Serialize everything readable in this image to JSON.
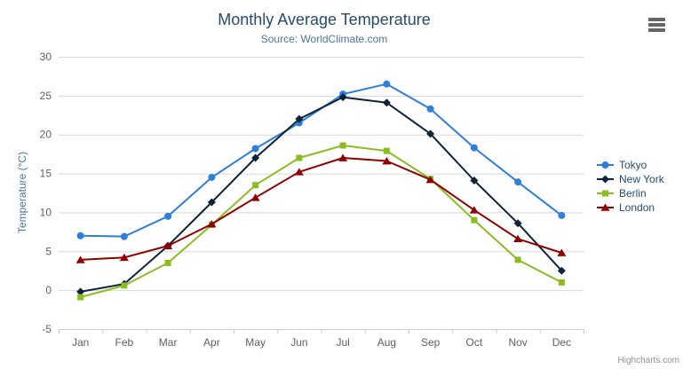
{
  "title": "Monthly Average Temperature",
  "subtitle": "Source: WorldClimate.com",
  "credits": "Highcharts.com",
  "colors": {
    "title_text": "#274b6d",
    "subtitle_text": "#4d759e",
    "axis_label": "#606060",
    "grid_line": "#d8d8d8",
    "axis_line": "#c0d0e0",
    "legend_text": "#274b6d",
    "credits_text": "#909090",
    "menu_icon": "#666666"
  },
  "chart_data": {
    "type": "line",
    "title": "Monthly Average Temperature",
    "subtitle": "Source: WorldClimate.com",
    "xlabel": "",
    "ylabel": "Temperature (°C)",
    "ylim": [
      -5,
      30
    ],
    "ytick_interval": 5,
    "grid": true,
    "legend_position": "right",
    "categories": [
      "Jan",
      "Feb",
      "Mar",
      "Apr",
      "May",
      "Jun",
      "Jul",
      "Aug",
      "Sep",
      "Oct",
      "Nov",
      "Dec"
    ],
    "series": [
      {
        "name": "Tokyo",
        "color": "#2f7ed8",
        "marker": "circle",
        "values": [
          7.0,
          6.9,
          9.5,
          14.5,
          18.2,
          21.5,
          25.2,
          26.5,
          23.3,
          18.3,
          13.9,
          9.6
        ]
      },
      {
        "name": "New York",
        "color": "#0d233a",
        "marker": "diamond",
        "values": [
          -0.2,
          0.8,
          5.7,
          11.3,
          17.0,
          22.0,
          24.8,
          24.1,
          20.1,
          14.1,
          8.6,
          2.5
        ]
      },
      {
        "name": "Berlin",
        "color": "#8bbc21",
        "marker": "square",
        "values": [
          -0.9,
          0.6,
          3.5,
          8.4,
          13.5,
          17.0,
          18.6,
          17.9,
          14.3,
          9.0,
          3.9,
          1.0
        ]
      },
      {
        "name": "London",
        "color": "#910000",
        "marker": "triangle",
        "values": [
          3.9,
          4.2,
          5.7,
          8.5,
          11.9,
          15.2,
          17.0,
          16.6,
          14.2,
          10.3,
          6.6,
          4.8
        ]
      }
    ]
  }
}
